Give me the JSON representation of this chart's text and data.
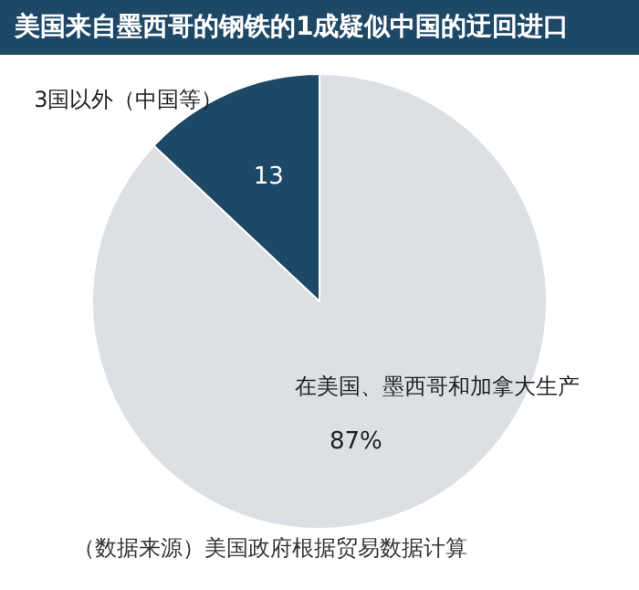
{
  "chart_data": {
    "type": "pie",
    "title": "美国来自墨西哥的钢铁的1成疑似中国的迂回进口",
    "categories": [
      "在美国、墨西哥和加拿大生产",
      "3国以外（中国等）"
    ],
    "values": [
      87,
      13
    ],
    "colors": [
      "#dcdfe4",
      "#1d4866"
    ],
    "value_labels": [
      "87%",
      "13"
    ],
    "annotations": [
      "（数据来源）美国政府根据贸易数据计算"
    ],
    "legend": false
  }
}
